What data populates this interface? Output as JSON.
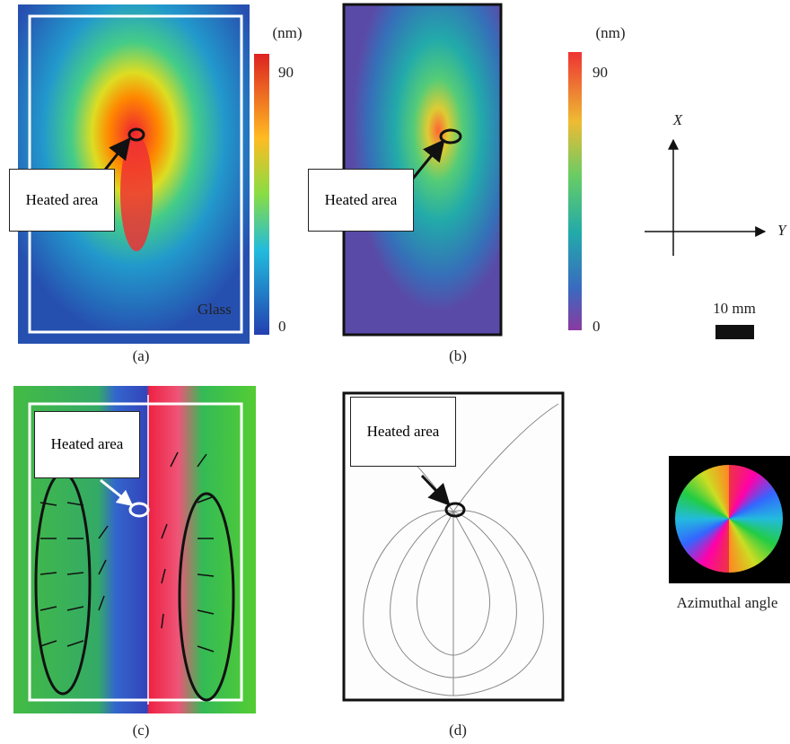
{
  "panels": [
    {
      "label": "(a)",
      "callout": "Heated area",
      "material": "Glass",
      "colorbar": {
        "unit": "(nm)",
        "max": 90,
        "min": 0
      }
    },
    {
      "label": "(b)",
      "callout": "Heated area",
      "colorbar": {
        "unit": "(nm)",
        "max": 90,
        "min": 0
      }
    },
    {
      "label": "(c)",
      "callout": "Heated area"
    },
    {
      "label": "(d)",
      "callout": "Heated area"
    }
  ],
  "axes": {
    "x": "X",
    "y": "Y"
  },
  "scale_bar": "10 mm",
  "color_wheel": "Azimuthal angle"
}
